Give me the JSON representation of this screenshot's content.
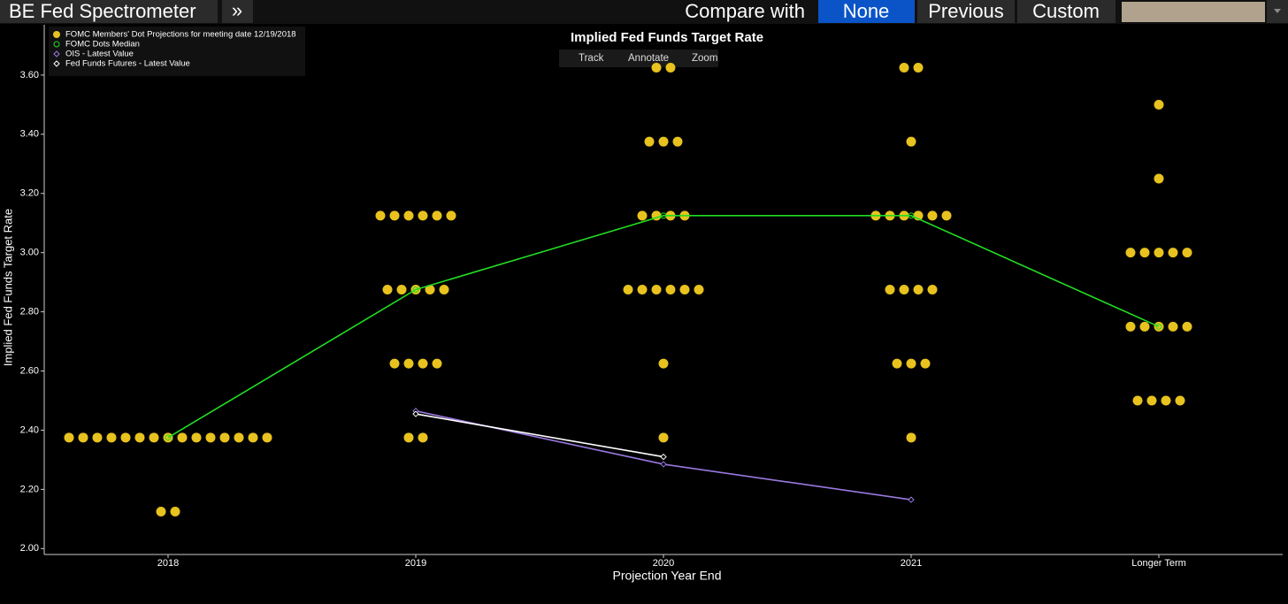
{
  "toolbar": {
    "title": "BE Fed Spectrometer",
    "expand": "»",
    "compare_label": "Compare with",
    "options": [
      "None",
      "Previous",
      "Custom"
    ]
  },
  "chart_tools": [
    "Track",
    "Annotate",
    "Zoom"
  ],
  "chart_data": {
    "type": "line",
    "title": "Implied Fed Funds Target Rate",
    "x_label": "Projection Year End",
    "y_label": "Implied Fed Funds Target Rate",
    "categories": [
      "2018",
      "2019",
      "2020",
      "2021",
      "Longer Term"
    ],
    "ylim": [
      1.98,
      3.77
    ],
    "yticks": [
      {
        "value": 2.0,
        "label": "2.00"
      },
      {
        "value": 2.2,
        "label": "2.20"
      },
      {
        "value": 2.4,
        "label": "2.40"
      },
      {
        "value": 2.6,
        "label": "2.60"
      },
      {
        "value": 2.8,
        "label": "2.80"
      },
      {
        "value": 3.0,
        "label": "3.00"
      },
      {
        "value": 3.2,
        "label": "3.20"
      },
      {
        "value": 3.4,
        "label": "3.40"
      },
      {
        "value": 3.6,
        "label": "3.60"
      }
    ],
    "legend": "top-left",
    "series": [
      {
        "name": "FOMC Members' Dot Projections for meeting date 12/19/2018",
        "type": "dots",
        "color": "#e8c21e",
        "values": [
          [
            2.375,
            2.375,
            2.375,
            2.375,
            2.375,
            2.375,
            2.375,
            2.375,
            2.375,
            2.375,
            2.375,
            2.375,
            2.375,
            2.375,
            2.375,
            2.125,
            2.125
          ],
          [
            3.125,
            3.125,
            3.125,
            3.125,
            3.125,
            3.125,
            2.875,
            2.875,
            2.875,
            2.875,
            2.875,
            2.625,
            2.625,
            2.625,
            2.625,
            2.375,
            2.375
          ],
          [
            3.625,
            3.625,
            3.375,
            3.375,
            3.375,
            3.125,
            3.125,
            3.125,
            3.125,
            2.875,
            2.875,
            2.875,
            2.875,
            2.875,
            2.875,
            2.625,
            2.375
          ],
          [
            3.625,
            3.625,
            3.375,
            3.125,
            3.125,
            3.125,
            3.125,
            3.125,
            3.125,
            2.875,
            2.875,
            2.875,
            2.875,
            2.625,
            2.625,
            2.625,
            2.375
          ],
          [
            3.5,
            3.25,
            3.0,
            3.0,
            3.0,
            3.0,
            3.0,
            2.75,
            2.75,
            2.75,
            2.75,
            2.75,
            2.5,
            2.5,
            2.5,
            2.5
          ]
        ]
      },
      {
        "name": "FOMC Dots Median",
        "type": "line",
        "marker": "circle",
        "color": "#22dd22",
        "values": [
          2.375,
          2.875,
          3.125,
          3.125,
          2.75
        ]
      },
      {
        "name": "OIS - Latest Value",
        "type": "line",
        "marker": "diamond",
        "color": "#9a7ae0",
        "values": [
          null,
          2.465,
          2.285,
          2.165,
          null
        ]
      },
      {
        "name": "Fed Funds Futures - Latest Value",
        "type": "line",
        "marker": "diamond",
        "color": "#ffffff",
        "values": [
          null,
          2.455,
          2.31,
          null,
          null
        ]
      }
    ]
  }
}
